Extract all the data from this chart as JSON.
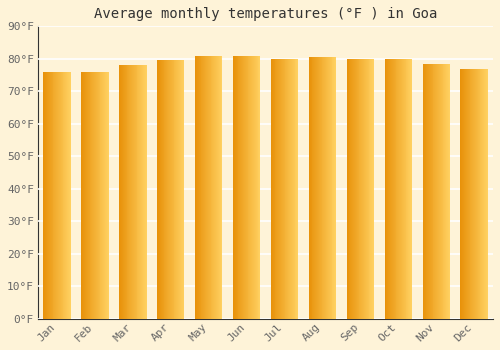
{
  "title": "Average monthly temperatures (°F ) in Goa",
  "months": [
    "Jan",
    "Feb",
    "Mar",
    "Apr",
    "May",
    "Jun",
    "Jul",
    "Aug",
    "Sep",
    "Oct",
    "Nov",
    "Dec"
  ],
  "values": [
    76,
    76,
    78,
    79.5,
    81,
    81,
    80,
    80.5,
    80,
    80,
    78.5,
    77
  ],
  "ylim": [
    0,
    90
  ],
  "yticks": [
    0,
    10,
    20,
    30,
    40,
    50,
    60,
    70,
    80,
    90
  ],
  "ytick_labels": [
    "0°F",
    "10°F",
    "20°F",
    "30°F",
    "40°F",
    "50°F",
    "60°F",
    "70°F",
    "80°F",
    "90°F"
  ],
  "grad_left_color": "#E8920A",
  "grad_right_color": "#FFD060",
  "background_color": "#FEF3D8",
  "grid_color": "#FFFFFF",
  "title_fontsize": 10,
  "tick_fontsize": 8,
  "font_family": "monospace",
  "bar_width": 0.72,
  "n_grad": 30
}
